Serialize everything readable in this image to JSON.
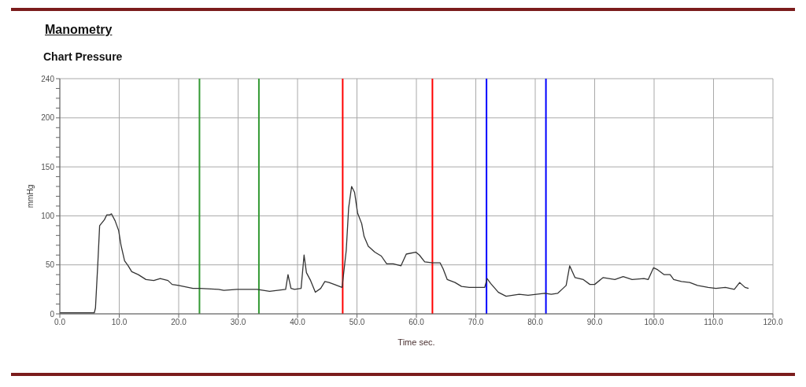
{
  "chart_data": {
    "type": "line",
    "title": "Manometry",
    "subtitle": "Chart Pressure",
    "xlabel": "Time sec.",
    "ylabel": "mmHg",
    "x": [
      0,
      2,
      4,
      5.8,
      6.0,
      6.4,
      6.7,
      7.5,
      7.9,
      8.4,
      8.7,
      9.3,
      9.9,
      10.3,
      10.9,
      11.5,
      12.1,
      13.2,
      14.5,
      15.8,
      16.9,
      18.2,
      18.9,
      20.0,
      22.4,
      23.5,
      26.7,
      27.6,
      29.8,
      33.2,
      35.3,
      38.0,
      38.4,
      38.9,
      39.5,
      40.6,
      41.1,
      41.5,
      42.2,
      43.0,
      43.9,
      44.6,
      45.3,
      46.2,
      47.5,
      48.2,
      48.6,
      49.1,
      49.6,
      50.1,
      50.8,
      51.2,
      51.9,
      53.0,
      54.1,
      55.0,
      56.1,
      57.4,
      58.3,
      59.9,
      60.5,
      61.4,
      62.7,
      64.0,
      64.5,
      65.2,
      66.5,
      67.6,
      68.9,
      71.5,
      71.9,
      72.5,
      73.8,
      75.1,
      77.3,
      78.8,
      81.6,
      82.7,
      83.8,
      84.5,
      85.2,
      85.8,
      86.7,
      88.1,
      89.2,
      90.0,
      91.4,
      93.4,
      94.8,
      96.3,
      98.3,
      99.0,
      99.9,
      100.6,
      101.7,
      102.7,
      103.3,
      104.6,
      106.0,
      107.3,
      109.1,
      110.4,
      112.0,
      113.5,
      114.4,
      115.3,
      115.9
    ],
    "series": [
      {
        "color": "#333333",
        "values": [
          1,
          1,
          1,
          1,
          6,
          52,
          90,
          96,
          101,
          101,
          102,
          95,
          85,
          70,
          54,
          49,
          43,
          40,
          35,
          34,
          36,
          34,
          30,
          29,
          26,
          26,
          25,
          24,
          25,
          25,
          23,
          25,
          40,
          26,
          25,
          26,
          60,
          42,
          34,
          22,
          26,
          33,
          32,
          30,
          27,
          65,
          108,
          130,
          124,
          103,
          92,
          79,
          69,
          63,
          59,
          51,
          51,
          49,
          61,
          63,
          60,
          53,
          52,
          52,
          46,
          35,
          32,
          28,
          27,
          27,
          36,
          31,
          22,
          18,
          20,
          19,
          21,
          20,
          21,
          25,
          29,
          49,
          37,
          35,
          30,
          30,
          37,
          35,
          38,
          35,
          36,
          35,
          47,
          45,
          40,
          40,
          35,
          33,
          32,
          29,
          27,
          26,
          27,
          25,
          32,
          27,
          26
        ]
      }
    ],
    "xlim": [
      0,
      120
    ],
    "xticks": [
      {
        "value": 0,
        "label": "0.0"
      },
      {
        "value": 10,
        "label": "10.0"
      },
      {
        "value": 20,
        "label": "20.0"
      },
      {
        "value": 30,
        "label": "30.0"
      },
      {
        "value": 40,
        "label": "40.0"
      },
      {
        "value": 50,
        "label": "50.0"
      },
      {
        "value": 60,
        "label": "60.0"
      },
      {
        "value": 70,
        "label": "70.0"
      },
      {
        "value": 80,
        "label": "80.0"
      },
      {
        "value": 90,
        "label": "90.0"
      },
      {
        "value": 100,
        "label": "100.0"
      },
      {
        "value": 110,
        "label": "110.0"
      },
      {
        "value": 120,
        "label": "120.0"
      }
    ],
    "ylim": [
      0,
      240
    ],
    "yticks": [
      0,
      {
        "value": 10,
        "label": null
      },
      {
        "value": 20,
        "label": null
      },
      {
        "value": 30,
        "label": null
      },
      {
        "value": 40,
        "label": null
      },
      50,
      {
        "value": 60,
        "label": null
      },
      {
        "value": 70,
        "label": null
      },
      {
        "value": 80,
        "label": null
      },
      {
        "value": 90,
        "label": null
      },
      100,
      {
        "value": 110,
        "label": null
      },
      {
        "value": 120,
        "label": null
      },
      {
        "value": 130,
        "label": null
      },
      {
        "value": 140,
        "label": null
      },
      150,
      {
        "value": 160,
        "label": null
      },
      {
        "value": 170,
        "label": null
      },
      {
        "value": 180,
        "label": null
      },
      {
        "value": 190,
        "label": null
      },
      200,
      {
        "value": 210,
        "label": null
      },
      {
        "value": 220,
        "label": null
      },
      {
        "value": 230,
        "label": null
      },
      240
    ],
    "grid": true,
    "line_style": "solid",
    "ref_lines": [
      {
        "axis": "x",
        "value": 23.5,
        "color": "#339933"
      },
      {
        "axis": "x",
        "value": 33.5,
        "color": "#339933"
      },
      {
        "axis": "x",
        "value": 47.6,
        "color": "#ff0000"
      },
      {
        "axis": "x",
        "value": 62.7,
        "color": "#ff0000"
      },
      {
        "axis": "x",
        "value": 71.8,
        "color": "#0000ff"
      },
      {
        "axis": "x",
        "value": 81.8,
        "color": "#0000ff"
      }
    ]
  }
}
